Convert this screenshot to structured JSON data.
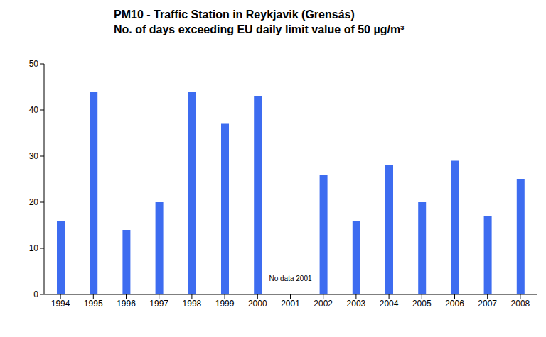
{
  "chart_data": {
    "type": "bar",
    "title": "PM10 - Traffic Station in Reykjavik (Grensás)",
    "subtitle": "No. of days exceeding EU daily limit value of 50 µg/m³",
    "categories": [
      "1994",
      "1995",
      "1996",
      "1997",
      "1998",
      "1999",
      "2000",
      "2001",
      "2002",
      "2003",
      "2004",
      "2005",
      "2006",
      "2007",
      "2008"
    ],
    "values": [
      16,
      44,
      14,
      20,
      44,
      37,
      43,
      null,
      26,
      16,
      28,
      20,
      29,
      17,
      25
    ],
    "color": "#3d6cf0",
    "ylim": [
      0,
      50
    ],
    "yticks": [
      0,
      10,
      20,
      30,
      40,
      50
    ],
    "grid": false,
    "annotations": [
      "No data 2001"
    ]
  }
}
